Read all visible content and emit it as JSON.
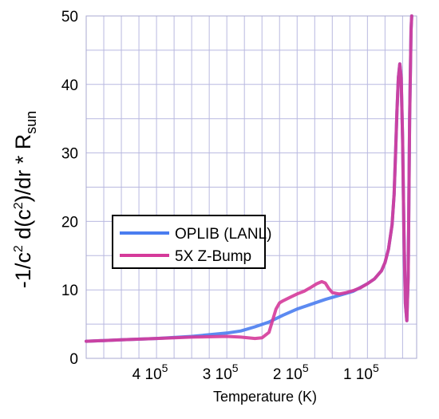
{
  "chart_data": {
    "type": "line",
    "xlabel": "Temperature (K)",
    "ylabel": {
      "parts": [
        "-1/c",
        "2",
        " d(c",
        "2",
        ")/dr * R",
        "sun"
      ]
    },
    "x_reversed": true,
    "xlim": [
      500000,
      30000
    ],
    "ylim": [
      0,
      50
    ],
    "yticks": [
      0,
      10,
      20,
      30,
      40,
      50
    ],
    "xticks": [
      {
        "value": 400000,
        "mantissa": "4",
        "base": " 10",
        "exp": "5"
      },
      {
        "value": 300000,
        "mantissa": "3",
        "base": " 10",
        "exp": "5"
      },
      {
        "value": 200000,
        "mantissa": "2",
        "base": " 10",
        "exp": "5"
      },
      {
        "value": 100000,
        "mantissa": "1",
        "base": " 10",
        "exp": "5"
      }
    ],
    "grid": true,
    "legend_position": "left-middle",
    "series": [
      {
        "name": "OPLIB (LANL)",
        "color": "#4a7df0",
        "x": [
          500000,
          450000,
          400000,
          350000,
          300000,
          280000,
          260000,
          240000,
          220000,
          200000,
          180000,
          160000,
          140000,
          120000,
          100000,
          90000,
          80000,
          75000,
          70000,
          65000,
          62000,
          60000,
          58000,
          56000,
          54000,
          52000,
          50000,
          48000,
          46000,
          44000,
          42000,
          40000,
          38000,
          37000
        ],
        "y": [
          2.5,
          2.7,
          2.9,
          3.2,
          3.7,
          4.0,
          4.6,
          5.3,
          6.3,
          7.2,
          7.9,
          8.6,
          9.2,
          9.8,
          10.9,
          11.6,
          12.8,
          14.0,
          16.0,
          19.5,
          24.0,
          30.0,
          36.0,
          41.0,
          43.0,
          41.0,
          32.0,
          18.0,
          8.0,
          5.5,
          12.0,
          35.0,
          48.0,
          50.0
        ]
      },
      {
        "name": "5X Z-Bump",
        "color": "#d53a9a",
        "x": [
          500000,
          450000,
          400000,
          350000,
          300000,
          280000,
          260000,
          250000,
          240000,
          235000,
          230000,
          225000,
          220000,
          210000,
          200000,
          190000,
          180000,
          172000,
          165000,
          160000,
          155000,
          150000,
          140000,
          130000,
          120000,
          110000,
          100000,
          90000,
          80000,
          75000,
          70000,
          65000,
          62000,
          60000,
          58000,
          56000,
          54000,
          52000,
          50000,
          48000,
          46000,
          44000,
          42000,
          40000,
          38000,
          37000
        ],
        "y": [
          2.5,
          2.7,
          2.9,
          3.1,
          3.2,
          3.1,
          2.9,
          3.0,
          3.8,
          5.5,
          7.2,
          8.1,
          8.4,
          8.9,
          9.4,
          9.8,
          10.4,
          10.9,
          11.2,
          11.0,
          10.2,
          9.6,
          9.4,
          9.6,
          9.9,
          10.3,
          10.9,
          11.6,
          12.8,
          14.0,
          16.0,
          19.5,
          24.0,
          30.0,
          36.0,
          41.0,
          43.0,
          41.0,
          32.0,
          18.0,
          8.0,
          5.5,
          12.0,
          35.0,
          48.0,
          50.0
        ]
      }
    ]
  }
}
